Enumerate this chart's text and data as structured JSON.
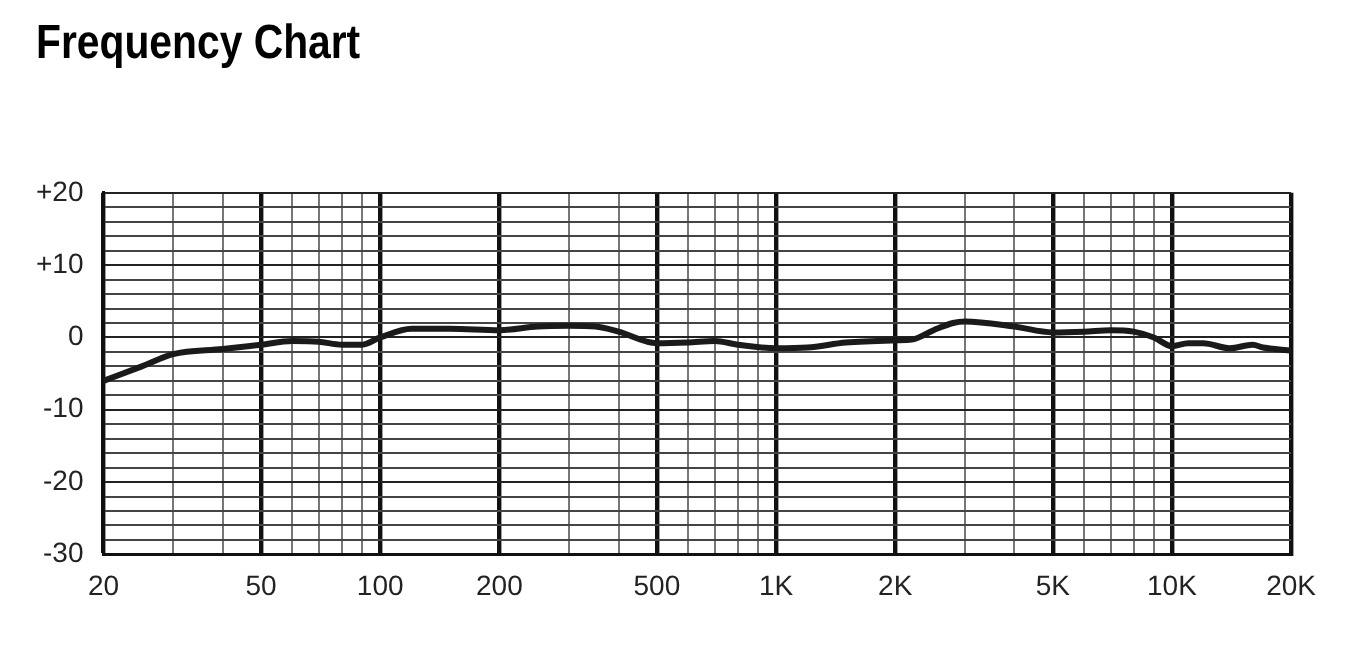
{
  "chart_data": {
    "type": "line",
    "title": "Frequency Chart",
    "log": "x",
    "grid": true,
    "legend": false,
    "marker": "none",
    "line_style": "solid",
    "xlim": [
      20,
      20000
    ],
    "ylim": [
      -30,
      20
    ],
    "xticks": [
      {
        "value": 20,
        "label": "20"
      },
      {
        "value": 30,
        "label": null
      },
      {
        "value": 40,
        "label": null
      },
      {
        "value": 50,
        "label": "50"
      },
      {
        "value": 60,
        "label": null
      },
      {
        "value": 70,
        "label": null
      },
      {
        "value": 80,
        "label": null
      },
      {
        "value": 90,
        "label": null
      },
      {
        "value": 100,
        "label": "100"
      },
      {
        "value": 200,
        "label": "200"
      },
      {
        "value": 300,
        "label": null
      },
      {
        "value": 400,
        "label": null
      },
      {
        "value": 500,
        "label": "500"
      },
      {
        "value": 600,
        "label": null
      },
      {
        "value": 700,
        "label": null
      },
      {
        "value": 800,
        "label": null
      },
      {
        "value": 900,
        "label": null
      },
      {
        "value": 1000,
        "label": "1K"
      },
      {
        "value": 2000,
        "label": "2K"
      },
      {
        "value": 3000,
        "label": null
      },
      {
        "value": 4000,
        "label": null
      },
      {
        "value": 5000,
        "label": "5K"
      },
      {
        "value": 6000,
        "label": null
      },
      {
        "value": 7000,
        "label": null
      },
      {
        "value": 8000,
        "label": null
      },
      {
        "value": 9000,
        "label": null
      },
      {
        "value": 10000,
        "label": "10K"
      },
      {
        "value": 20000,
        "label": "20K"
      }
    ],
    "yticks": [
      -30,
      {
        "value": -28,
        "label": null
      },
      {
        "value": -26,
        "label": null
      },
      {
        "value": -24,
        "label": null
      },
      {
        "value": -22,
        "label": null
      },
      -20,
      {
        "value": -18,
        "label": null
      },
      {
        "value": -16,
        "label": null
      },
      {
        "value": -14,
        "label": null
      },
      {
        "value": -12,
        "label": null
      },
      -10,
      {
        "value": -8,
        "label": null
      },
      {
        "value": -6,
        "label": null
      },
      {
        "value": -4,
        "label": null
      },
      {
        "value": -2,
        "label": null
      },
      0,
      {
        "value": 2,
        "label": null
      },
      {
        "value": 4,
        "label": null
      },
      {
        "value": 6,
        "label": null
      },
      {
        "value": 8,
        "label": null
      },
      {
        "value": 10,
        "label": "+10"
      },
      {
        "value": 12,
        "label": null
      },
      {
        "value": 14,
        "label": null
      },
      {
        "value": 16,
        "label": null
      },
      {
        "value": 18,
        "label": null
      },
      {
        "value": 20,
        "label": "+20"
      }
    ],
    "series": [
      {
        "color": "#1a1a1a",
        "x": [
          20,
          25,
          30,
          40,
          50,
          60,
          70,
          80,
          90,
          100,
          120,
          150,
          200,
          250,
          300,
          350,
          400,
          500,
          600,
          700,
          800,
          1000,
          1200,
          1500,
          2000,
          2200,
          2500,
          2800,
          3000,
          4000,
          5000,
          6000,
          7000,
          8000,
          9000,
          10000,
          11000,
          12000,
          14000,
          16000,
          17000,
          20000
        ],
        "values": [
          -6,
          -4,
          -2.3,
          -1.6,
          -1,
          -0.5,
          -0.6,
          -1,
          -1,
          0,
          1.2,
          1.2,
          1,
          1.5,
          1.6,
          1.5,
          0.8,
          -0.8,
          -0.7,
          -0.5,
          -1,
          -1.5,
          -1.4,
          -0.7,
          -0.4,
          -0.3,
          1,
          2,
          2.2,
          1.5,
          0.7,
          0.8,
          1,
          0.8,
          0,
          -1.2,
          -0.8,
          -0.8,
          -1.5,
          -1,
          -1.4,
          -1.8
        ]
      }
    ]
  }
}
